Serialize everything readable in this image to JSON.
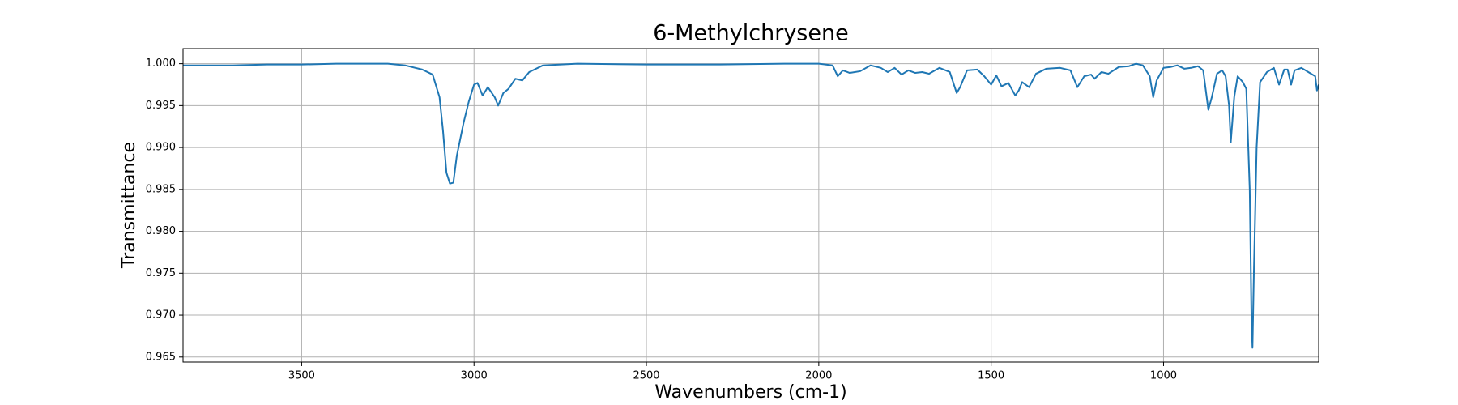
{
  "chart_data": {
    "type": "line",
    "title": "6-Methylchrysene",
    "xlabel": "Wavenumbers (cm-1)",
    "ylabel": "Transmittance",
    "xlim": [
      3844,
      550
    ],
    "ylim": [
      0.9644,
      1.0018
    ],
    "xticks": [
      3500,
      3000,
      2500,
      2000,
      1500,
      1000
    ],
    "yticks": [
      {
        "value": 0.965,
        "label": "0.965"
      },
      {
        "value": 0.97,
        "label": "0.970"
      },
      {
        "value": 0.975,
        "label": "0.975"
      },
      {
        "value": 0.98,
        "label": "0.980"
      },
      {
        "value": 0.985,
        "label": "0.985"
      },
      {
        "value": 0.99,
        "label": "0.990"
      },
      {
        "value": 0.995,
        "label": "0.995"
      },
      {
        "value": 1.0,
        "label": "1.000"
      }
    ],
    "grid": true,
    "x": [
      3844,
      3700,
      3600,
      3500,
      3400,
      3300,
      3250,
      3200,
      3150,
      3120,
      3100,
      3090,
      3080,
      3070,
      3060,
      3050,
      3030,
      3015,
      3000,
      2990,
      2975,
      2960,
      2940,
      2930,
      2915,
      2900,
      2880,
      2860,
      2840,
      2800,
      2700,
      2500,
      2300,
      2100,
      2000,
      1960,
      1945,
      1930,
      1910,
      1880,
      1850,
      1820,
      1800,
      1780,
      1760,
      1740,
      1720,
      1700,
      1680,
      1650,
      1620,
      1600,
      1590,
      1570,
      1540,
      1520,
      1500,
      1485,
      1470,
      1450,
      1430,
      1420,
      1410,
      1390,
      1370,
      1340,
      1300,
      1270,
      1250,
      1230,
      1210,
      1200,
      1180,
      1160,
      1130,
      1100,
      1080,
      1060,
      1040,
      1030,
      1020,
      1000,
      980,
      960,
      940,
      920,
      900,
      885,
      870,
      860,
      845,
      830,
      820,
      810,
      805,
      795,
      785,
      770,
      760,
      750,
      745,
      742,
      738,
      730,
      720,
      700,
      680,
      665,
      650,
      640,
      630,
      620,
      600,
      580,
      560,
      555,
      550
    ],
    "series": [
      {
        "name": "6-Methylchrysene",
        "color": "#1f77b4",
        "values": [
          0.9998,
          0.9998,
          0.9999,
          0.9999,
          1.0,
          1.0,
          1.0,
          0.9998,
          0.9993,
          0.9987,
          0.996,
          0.992,
          0.987,
          0.9857,
          0.9858,
          0.989,
          0.993,
          0.9955,
          0.9975,
          0.9977,
          0.9962,
          0.9972,
          0.996,
          0.995,
          0.9965,
          0.997,
          0.9982,
          0.998,
          0.999,
          0.9998,
          1.0,
          0.9999,
          0.9999,
          1.0,
          1.0,
          0.9998,
          0.9985,
          0.9992,
          0.9989,
          0.9991,
          0.9998,
          0.9995,
          0.999,
          0.9995,
          0.9987,
          0.9992,
          0.9989,
          0.999,
          0.9988,
          0.9995,
          0.999,
          0.9965,
          0.9972,
          0.9992,
          0.9993,
          0.9985,
          0.9975,
          0.9986,
          0.9973,
          0.9977,
          0.9962,
          0.9968,
          0.9978,
          0.9972,
          0.9988,
          0.9994,
          0.9995,
          0.9992,
          0.9972,
          0.9985,
          0.9987,
          0.9982,
          0.999,
          0.9988,
          0.9996,
          0.9997,
          1.0,
          0.9998,
          0.9985,
          0.996,
          0.998,
          0.9995,
          0.9996,
          0.9998,
          0.9994,
          0.9995,
          0.9997,
          0.9992,
          0.9945,
          0.996,
          0.9988,
          0.9992,
          0.9985,
          0.995,
          0.9906,
          0.996,
          0.9985,
          0.9978,
          0.997,
          0.985,
          0.97,
          0.9661,
          0.975,
          0.99,
          0.9978,
          0.999,
          0.9995,
          0.9975,
          0.9993,
          0.9993,
          0.9975,
          0.9992,
          0.9995,
          0.999,
          0.9985,
          0.9968,
          0.9975
        ]
      }
    ]
  }
}
